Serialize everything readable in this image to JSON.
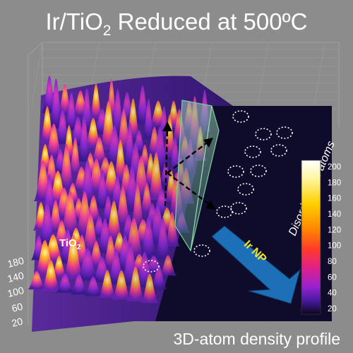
{
  "title": {
    "prefix": "Ir/TiO",
    "subscript": "2",
    "suffix": " Reduced at 500ºC"
  },
  "footer_label": "3D-atom density profile",
  "annotations": {
    "disordered_label": "Disordered Ti atoms",
    "arrow_label": "Ir NP",
    "tio2_prefix": "TiO",
    "tio2_subscript": "2"
  },
  "left_axis": {
    "ticks": [
      "180",
      "140",
      "100",
      "60",
      "20"
    ]
  },
  "colorbar": {
    "ticks": [
      "200",
      "180",
      "160",
      "140",
      "120",
      "100",
      "80",
      "60",
      "40",
      "20"
    ],
    "min": 20,
    "max": 200
  },
  "colors": {
    "background": "#8c8c8c",
    "floor": "#0f0b2b",
    "arrow_fill": "#1d6fb8",
    "arrow_text": "#f2e22a",
    "highlight_plane": "#6a9a7a"
  }
}
